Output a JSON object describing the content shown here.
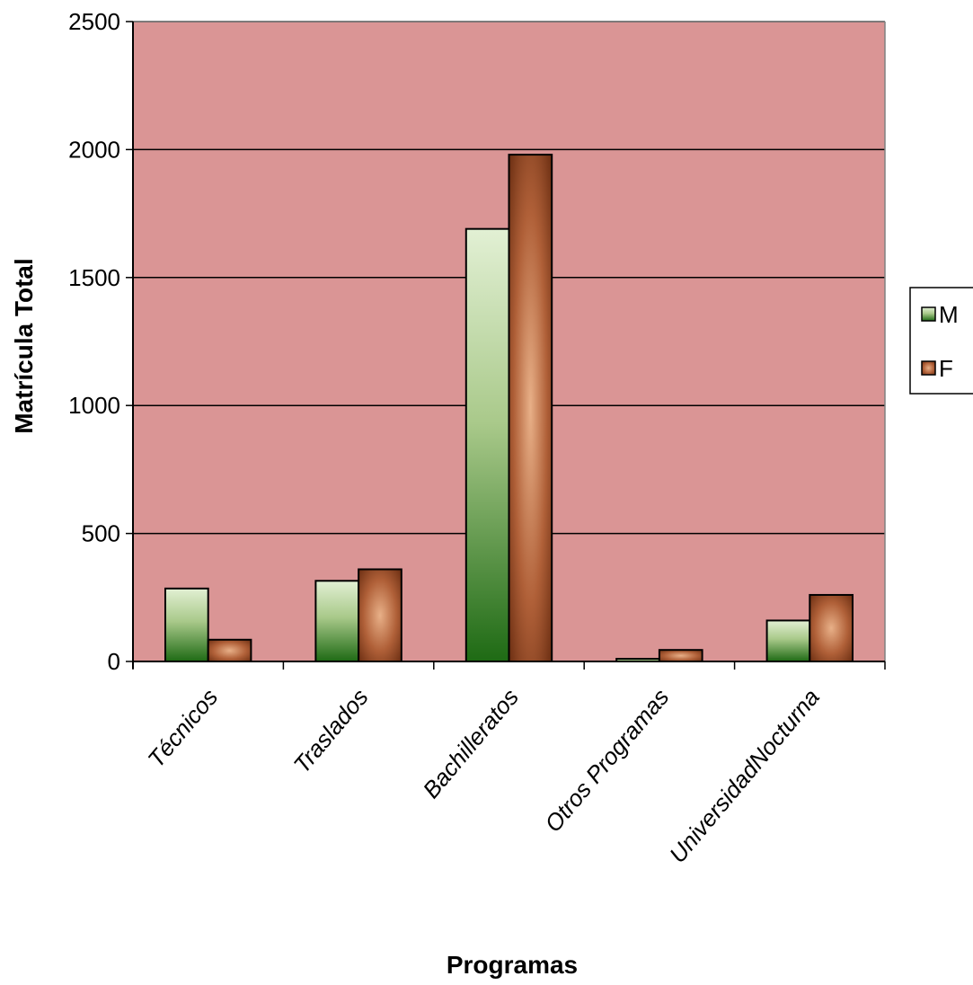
{
  "chart_data": {
    "type": "bar",
    "title": "",
    "xlabel": "Programas",
    "ylabel": "Matrícula Total",
    "categories": [
      "Técnicos",
      "Traslados",
      "Bachilleratos",
      "Otros Programas",
      "UniversidadNocturna"
    ],
    "series": [
      {
        "name": "M",
        "values": [
          285,
          315,
          1690,
          10,
          160
        ]
      },
      {
        "name": "F",
        "values": [
          85,
          360,
          1980,
          45,
          260
        ]
      }
    ],
    "ylim": [
      0,
      2500
    ],
    "yticks": [
      "0",
      "500",
      "1000",
      "1500",
      "2000",
      "2500"
    ],
    "grid": true,
    "legend_position": "right",
    "colors": {
      "plot_background": "#da9595",
      "M_top": "#e2f0d4",
      "M_bottom": "#1e6a14",
      "F_edge": "#6b2e12",
      "F_center": "#e8b088"
    }
  }
}
